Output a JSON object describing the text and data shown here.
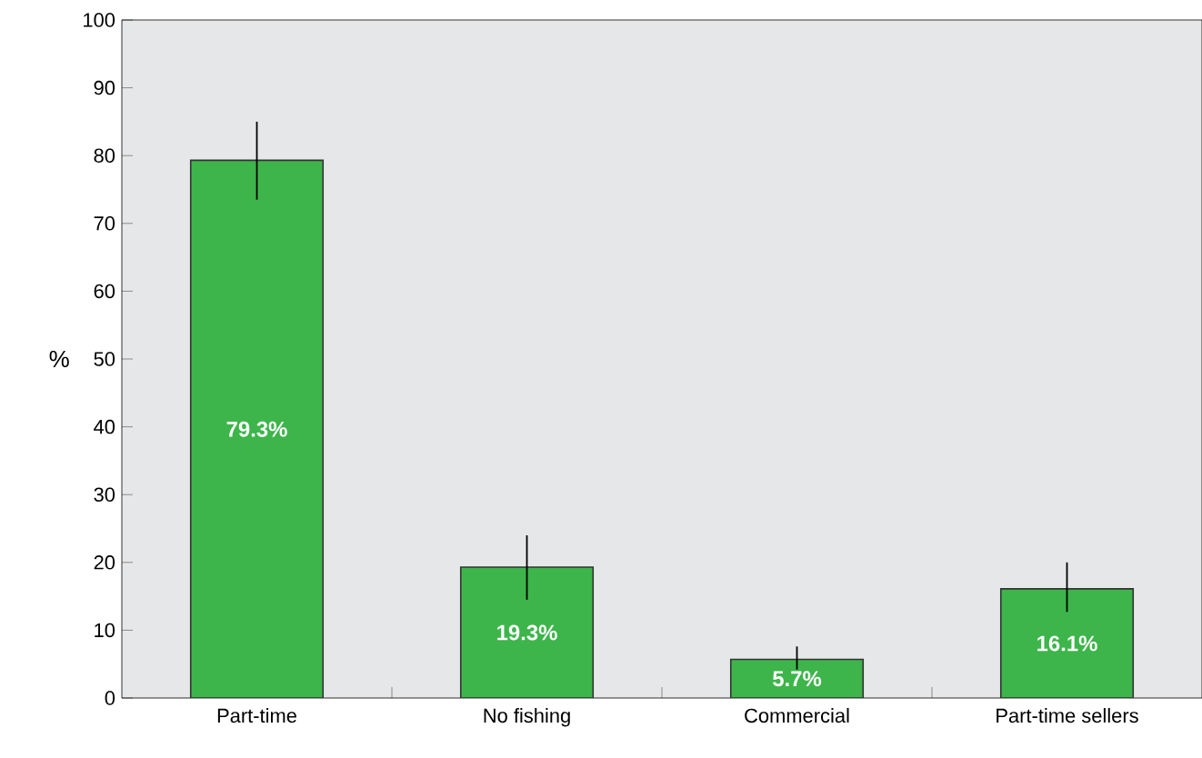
{
  "chart_data": {
    "type": "bar",
    "ylabel": "%",
    "categories": [
      "Part-time",
      "No fishing",
      "Commercial",
      "Part-time sellers"
    ],
    "values": [
      79.3,
      19.3,
      5.7,
      16.1
    ],
    "value_labels": [
      "79.3%",
      "19.3%",
      "5.7%",
      "16.1%"
    ],
    "errors": [
      [
        73.5,
        85
      ],
      [
        14.5,
        24
      ],
      [
        4.2,
        7.6
      ],
      [
        12.7,
        20
      ]
    ],
    "color": "#3db54a",
    "ylim": [
      0,
      100
    ],
    "yticks": [
      0,
      10,
      20,
      30,
      40,
      50,
      60,
      70,
      80,
      90,
      100
    ]
  }
}
